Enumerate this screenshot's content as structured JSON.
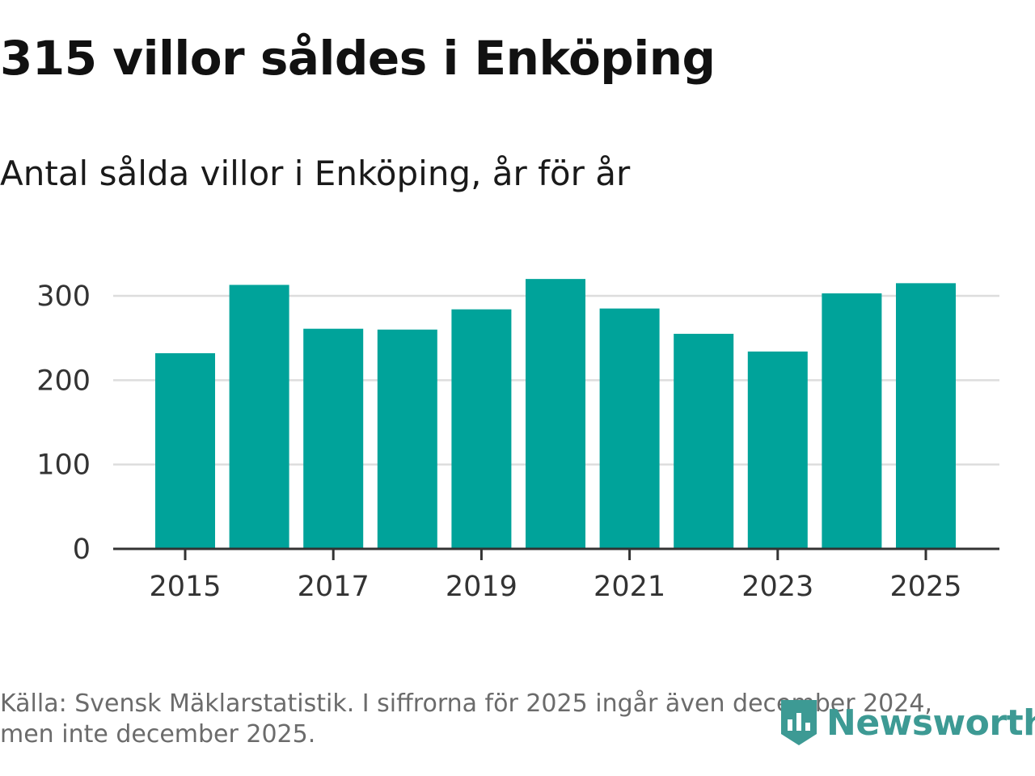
{
  "header": {
    "title": "315 villor såldes i Enköping",
    "subtitle": "Antal sålda villor i Enköping, år för år"
  },
  "footer": {
    "source_line1": "Källa: Svensk Mäklarstatistik. I siffrorna för 2025 ingår även december 2024,",
    "source_line2": "men inte december 2025."
  },
  "logo": {
    "text": "Newsworthy",
    "color": "#3d9a94"
  },
  "colors": {
    "bar": "#00a39a",
    "grid": "#dddddd",
    "axis": "#333333"
  },
  "chart_data": {
    "type": "bar",
    "title": "315 villor såldes i Enköping",
    "subtitle": "Antal sålda villor i Enköping, år för år",
    "xlabel": "",
    "ylabel": "",
    "categories": [
      "2015",
      "2016",
      "2017",
      "2018",
      "2019",
      "2020",
      "2021",
      "2022",
      "2023",
      "2024",
      "2025"
    ],
    "values": [
      232,
      313,
      261,
      260,
      284,
      320,
      285,
      255,
      234,
      303,
      315
    ],
    "ylim": [
      0,
      300
    ],
    "yticks": [
      "0",
      "100",
      "200",
      "300"
    ],
    "xticks": [
      "2015",
      "2017",
      "2019",
      "2021",
      "2023",
      "2025"
    ],
    "grid": true,
    "legend": "none"
  }
}
